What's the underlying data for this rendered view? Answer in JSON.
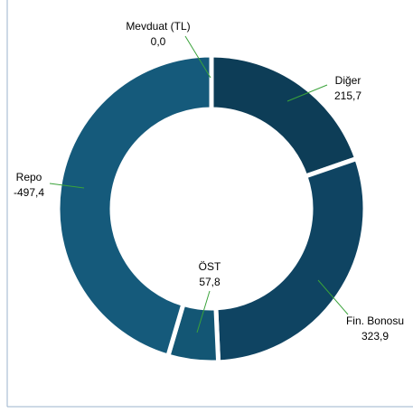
{
  "chart_data": {
    "type": "donut",
    "categories": [
      "Mevduat (TL)",
      "Diğer",
      "Fin. Bonosu",
      "ÖST",
      "Repo"
    ],
    "values": [
      0.0,
      215.7,
      323.9,
      57.8,
      -497.4
    ],
    "value_labels": [
      "0,0",
      "215,7",
      "323,9",
      "57,8",
      "-497,4"
    ],
    "colors": [
      "#0e3f5a",
      "#0d3d57",
      "#0f4462",
      "#135674",
      "#155a7b"
    ]
  }
}
